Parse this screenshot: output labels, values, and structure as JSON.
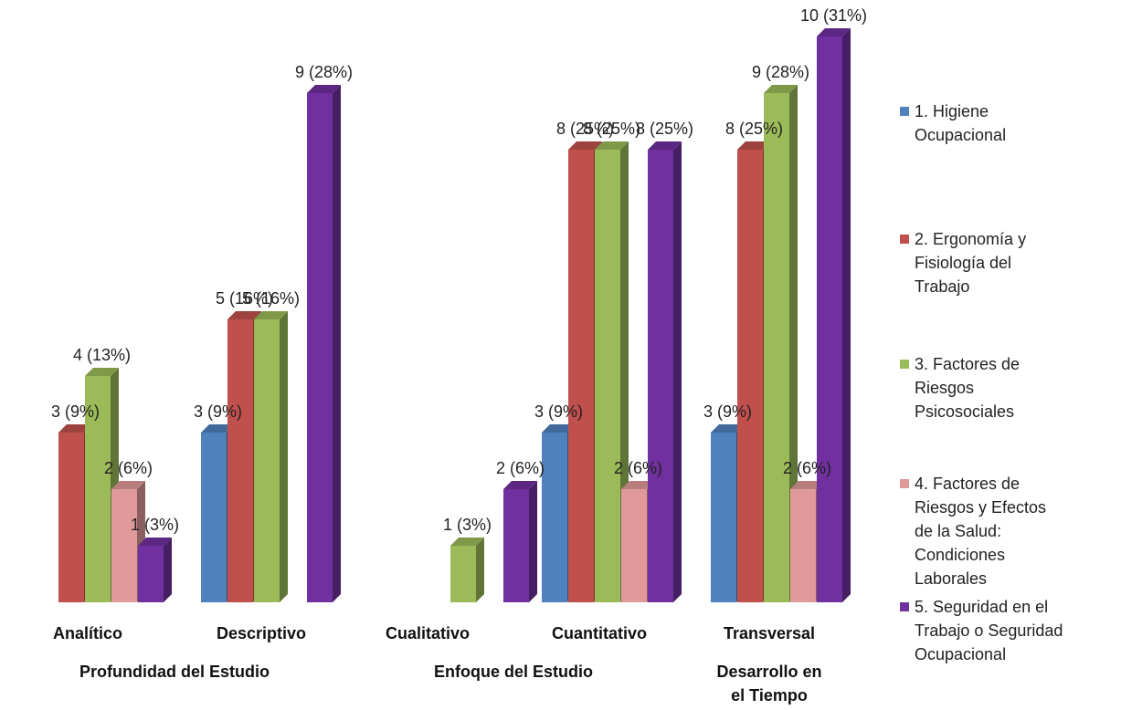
{
  "chart_data": {
    "type": "bar",
    "title": "",
    "xlabel": "",
    "ylabel": "",
    "ylim": [
      0,
      10
    ],
    "grid": false,
    "legend_position": "right",
    "categories": [
      "Analítico",
      "Descriptivo",
      "Cualitativo",
      "Cuantitativo",
      "Transversal"
    ],
    "groups": [
      {
        "label": "Profundidad del Estudio",
        "categories": [
          "Analítico",
          "Descriptivo"
        ]
      },
      {
        "label": "Enfoque del Estudio",
        "categories": [
          "Cualitativo",
          "Cuantitativo"
        ]
      },
      {
        "label": "Desarrollo en el Tiempo",
        "categories": [
          "Transversal"
        ]
      }
    ],
    "series": [
      {
        "name": "1. Higiene Ocupacional",
        "color": "#4F81BD",
        "values": [
          null,
          3,
          null,
          3,
          3
        ],
        "labels": [
          "",
          "3 (9%)",
          "",
          "3 (9%)",
          "3 (9%)"
        ]
      },
      {
        "name": "2. Ergonomía y Fisiología del Trabajo",
        "color": "#C0504D",
        "values": [
          3,
          5,
          null,
          8,
          8
        ],
        "labels": [
          "3 (9%)",
          "5 (16%)",
          "",
          "8 (25%)",
          "8 (25%)"
        ]
      },
      {
        "name": "3. Factores de Riesgos Psicosociales",
        "color": "#9BBB59",
        "values": [
          4,
          5,
          1,
          8,
          9
        ],
        "labels": [
          "4 (13%)",
          "5 (16%)",
          "1 (3%)",
          "8 (25%)",
          "9 (28%)"
        ]
      },
      {
        "name": "4. Factores de Riesgos y Efectos de la Salud: Condiciones Laborales",
        "color": "#E09A9A",
        "values": [
          2,
          null,
          null,
          2,
          2
        ],
        "labels": [
          "2 (6%)",
          "",
          "",
          "2 (6%)",
          "2 (6%)"
        ]
      },
      {
        "name": "5. Seguridad en el Trabajo o Seguridad Ocupacional",
        "color": "#7030A0",
        "values": [
          1,
          9,
          2,
          8,
          10
        ],
        "labels": [
          "1 (3%)",
          "9 (28%)",
          "2 (6%)",
          "8 (25%)",
          "10 (31%)"
        ]
      }
    ]
  }
}
